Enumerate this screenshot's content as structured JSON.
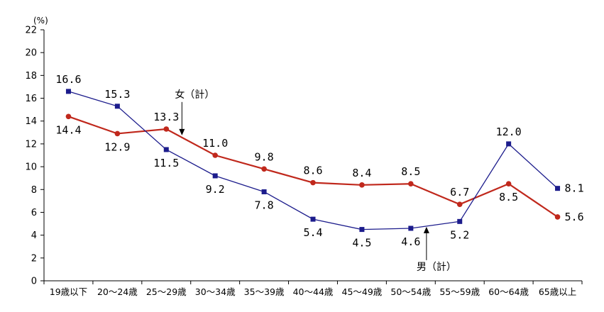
{
  "chart_data": {
    "type": "line",
    "unit_label": "(%)",
    "categories": [
      "19歳以下",
      "20～24歳",
      "25～29歳",
      "30～34歳",
      "35～39歳",
      "40～44歳",
      "45～49歳",
      "50～54歳",
      "55～59歳",
      "60～64歳",
      "65歳以上"
    ],
    "ylim": [
      0,
      22
    ],
    "yticks": [
      0,
      2,
      4,
      6,
      8,
      10,
      12,
      14,
      16,
      18,
      20,
      22
    ],
    "grid": false,
    "series": [
      {
        "name": "女（計）",
        "color": "#c0281c",
        "marker": "circle",
        "values": [
          14.4,
          12.9,
          13.3,
          11.0,
          9.8,
          8.6,
          8.4,
          8.5,
          6.7,
          8.5,
          5.6
        ],
        "labels": [
          "14.4",
          "12.9",
          "13.3",
          "11.0",
          "9.8",
          "8.6",
          "8.4",
          "8.5",
          "6.7",
          "8.5",
          "5.6"
        ]
      },
      {
        "name": "男（計）",
        "color": "#1c1c8c",
        "marker": "square",
        "values": [
          16.6,
          15.3,
          11.5,
          9.2,
          7.8,
          5.4,
          4.5,
          4.6,
          5.2,
          12.0,
          8.1
        ],
        "labels": [
          "16.6",
          "15.3",
          "11.5",
          "9.2",
          "7.8",
          "5.4",
          "4.5",
          "4.6",
          "5.2",
          "12.0",
          "8.1"
        ]
      }
    ],
    "annotations": [
      {
        "text": "女（計）",
        "series": 0,
        "between": [
          2,
          3
        ],
        "arrow": "down"
      },
      {
        "text": "男（計）",
        "series": 1,
        "between": [
          7,
          8
        ],
        "arrow": "up"
      }
    ]
  }
}
